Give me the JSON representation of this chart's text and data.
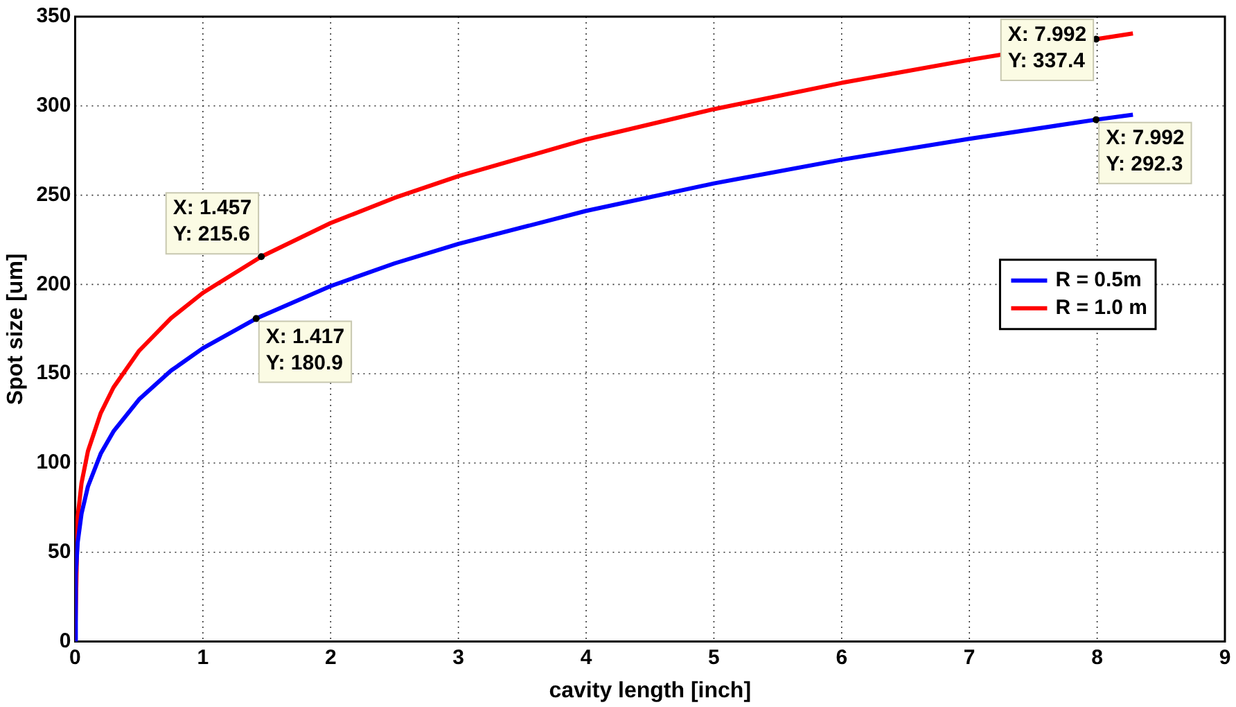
{
  "chart_data": {
    "type": "line",
    "xlabel": "cavity length [inch]",
    "ylabel": "Spot size [um]",
    "xlim": [
      0,
      9
    ],
    "xticks": [
      0,
      1,
      2,
      3,
      4,
      5,
      6,
      7,
      8,
      9
    ],
    "ylim": [
      0,
      350
    ],
    "yticks": [
      0,
      50,
      100,
      150,
      200,
      250,
      300,
      350
    ],
    "grid": true,
    "legend": "right",
    "marker": "none",
    "line_style": "solid",
    "series": [
      {
        "name": "R = 0.5m",
        "color": "#0000ff",
        "x": [
          0,
          0.005,
          0.02,
          0.05,
          0.1,
          0.2,
          0.3,
          0.5,
          0.75,
          1,
          1.417,
          2,
          2.5,
          3,
          4,
          5,
          6,
          7,
          7.992,
          8.28
        ],
        "values": [
          0,
          37.9,
          55.6,
          71.6,
          86.8,
          105.2,
          117.7,
          135.6,
          151.7,
          164.3,
          180.9,
          199.1,
          211.8,
          222.7,
          241.2,
          256.6,
          269.9,
          281.6,
          292.3,
          295.1
        ]
      },
      {
        "name": "R = 1.0 m",
        "color": "#ff0000",
        "x": [
          0,
          0.02,
          0.05,
          0.1,
          0.2,
          0.3,
          0.5,
          0.75,
          1,
          1.457,
          2,
          2.5,
          3,
          4,
          5,
          6,
          7,
          7.992,
          8.28
        ],
        "values": [
          0,
          69.8,
          88.8,
          106.6,
          127.9,
          142.3,
          162.8,
          181.1,
          195.3,
          215.6,
          234.4,
          248.5,
          260.7,
          281.2,
          298.2,
          312.9,
          325.8,
          337.4,
          340.6
        ]
      }
    ],
    "annotations": [
      {
        "text": "X: 1.457\nY: 215.6",
        "x": 1.457,
        "y": 215.6
      },
      {
        "text": "X: 1.417\nY: 180.9",
        "x": 1.417,
        "y": 180.9
      },
      {
        "text": "X: 7.992\nY: 337.4",
        "x": 7.992,
        "y": 337.4
      },
      {
        "text": "X: 7.992\nY: 292.3",
        "x": 7.992,
        "y": 292.3
      }
    ]
  }
}
